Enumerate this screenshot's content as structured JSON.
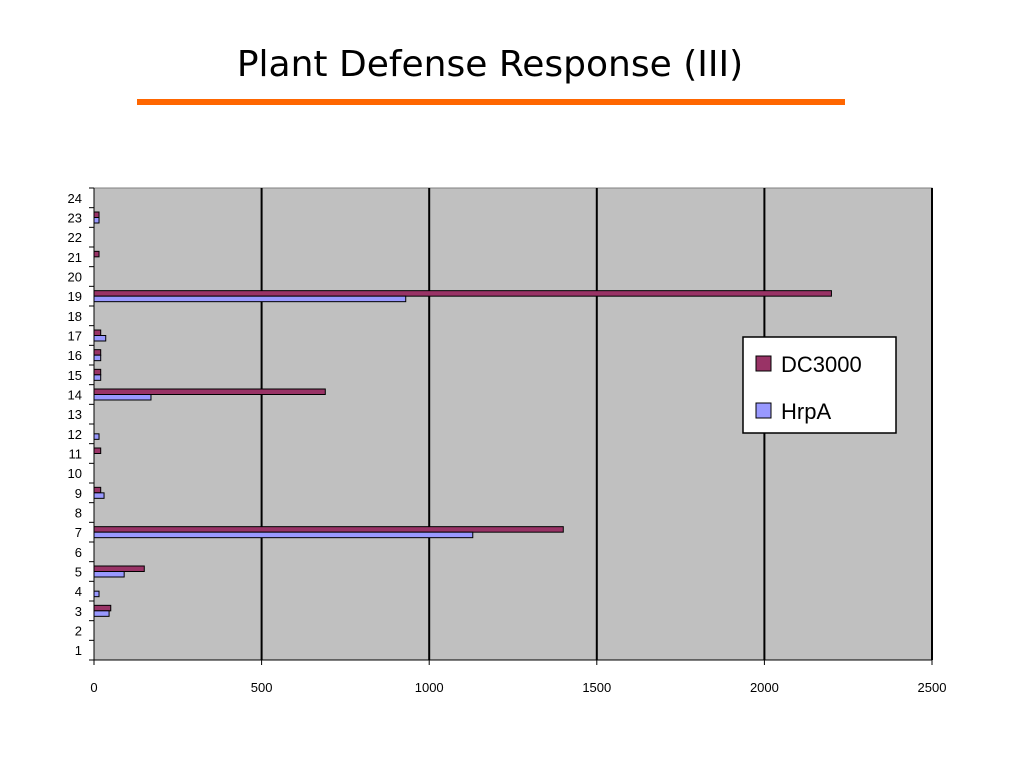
{
  "slide": {
    "title": "Plant Defense Response (III)",
    "title_rule_color": "#ff6600"
  },
  "chart_data": {
    "type": "bar",
    "orientation": "horizontal",
    "categories": [
      "1",
      "2",
      "3",
      "4",
      "5",
      "6",
      "7",
      "8",
      "9",
      "10",
      "11",
      "12",
      "13",
      "14",
      "15",
      "16",
      "17",
      "18",
      "19",
      "20",
      "21",
      "22",
      "23",
      "24"
    ],
    "series": [
      {
        "name": "DC3000",
        "color": "#993366",
        "values": [
          0,
          0,
          50,
          0,
          150,
          0,
          1400,
          0,
          20,
          0,
          20,
          0,
          0,
          690,
          20,
          20,
          20,
          0,
          2200,
          0,
          15,
          0,
          15,
          0
        ]
      },
      {
        "name": "HrpA",
        "color": "#9999ff",
        "values": [
          0,
          0,
          45,
          15,
          90,
          0,
          1130,
          0,
          30,
          0,
          0,
          15,
          0,
          170,
          20,
          20,
          35,
          0,
          930,
          0,
          0,
          0,
          15,
          0
        ]
      }
    ],
    "x_ticks": [
      "0",
      "500",
      "1000",
      "1500",
      "2000",
      "2500"
    ],
    "xlim": [
      0,
      2500
    ],
    "grid": true,
    "plot_background": "#c0c0c0",
    "legend_position": "right"
  }
}
